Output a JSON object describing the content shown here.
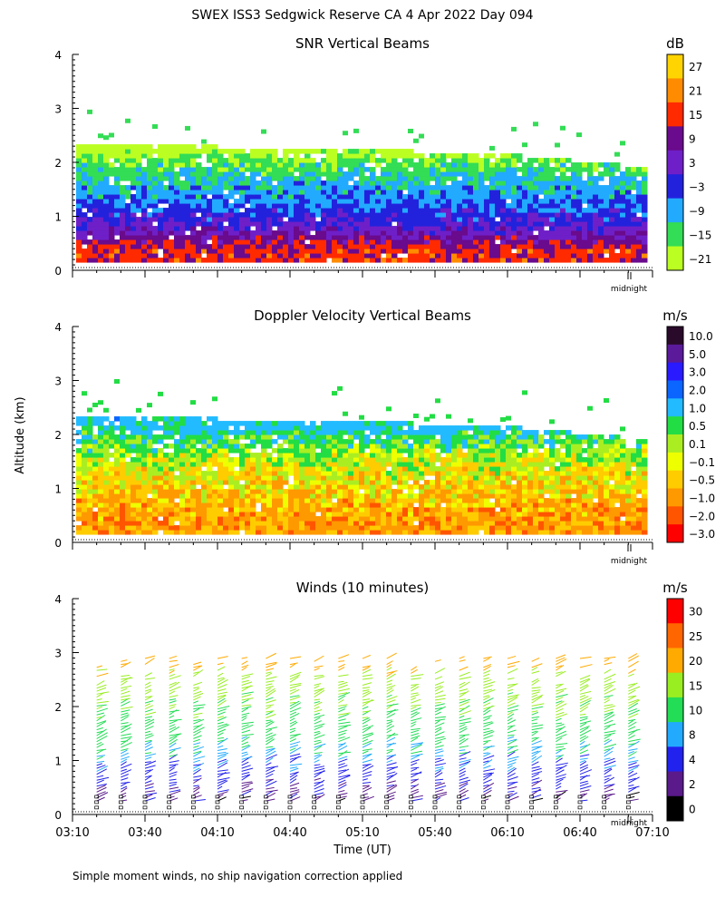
{
  "figure": {
    "title": "SWEX ISS3 Sedgwick Reserve CA    4 Apr 2022 Day 094",
    "ylabel": "Altitude (km)",
    "xlabel": "Time (UT)",
    "footnote": "Simple moment winds, no ship navigation correction applied",
    "midnight_label": "midnight"
  },
  "time_axis": {
    "ticks": [
      "03:10",
      "03:40",
      "04:10",
      "04:40",
      "05:10",
      "05:40",
      "06:10",
      "06:40",
      "07:10"
    ]
  },
  "chart_data": [
    {
      "type": "heatmap",
      "title": "SNR Vertical Beams",
      "xlabel": "",
      "ylabel": "Altitude (km)",
      "ylim": [
        0,
        4
      ],
      "xlim": [
        "03:10",
        "07:10"
      ],
      "yticks": [
        "0",
        "1",
        "2",
        "3",
        "4"
      ],
      "colorbar": {
        "unit": "dB",
        "labels": [
          "27",
          "21",
          "15",
          "9",
          "3",
          "−3",
          "−9",
          "−15",
          "−21"
        ],
        "colors": [
          "#ffd400",
          "#ff8c00",
          "#ff2a00",
          "#6a0a8c",
          "#6f1fc7",
          "#2222dd",
          "#22aaff",
          "#33dd55",
          "#bbff22"
        ]
      },
      "grid": false,
      "profile": [
        {
          "altitude": 0.35,
          "snr": 17
        },
        {
          "altitude": 0.55,
          "snr": 11
        },
        {
          "altitude": 0.8,
          "snr": 3
        },
        {
          "altitude": 1.2,
          "snr": -3
        },
        {
          "altitude": 1.6,
          "snr": -8
        },
        {
          "altitude": 2.0,
          "snr": -14
        },
        {
          "altitude": 2.2,
          "snr": -20
        }
      ],
      "data_top_km": [
        {
          "time": "03:10",
          "altitude": 2.25
        },
        {
          "time": "04:10",
          "altitude": 2.2
        },
        {
          "time": "05:10",
          "altitude": 2.15
        },
        {
          "time": "06:10",
          "altitude": 2.05
        },
        {
          "time": "07:10",
          "altitude": 1.8
        }
      ]
    },
    {
      "type": "heatmap",
      "title": "Doppler Velocity Vertical Beams",
      "xlabel": "",
      "ylabel": "Altitude (km)",
      "ylim": [
        0,
        4
      ],
      "xlim": [
        "03:10",
        "07:10"
      ],
      "yticks": [
        "0",
        "1",
        "2",
        "3",
        "4"
      ],
      "colorbar": {
        "unit": "m/s",
        "labels": [
          "10.0",
          "5.0",
          "3.0",
          "2.0",
          "1.0",
          "0.5",
          "0.1",
          "−0.1",
          "−0.5",
          "−1.0",
          "−2.0",
          "−3.0"
        ],
        "colors": [
          "#2a0a2a",
          "#5a1a9a",
          "#2a1aff",
          "#0a66ff",
          "#22bbff",
          "#22dd44",
          "#aaee22",
          "#eeff00",
          "#ffcc00",
          "#ff9900",
          "#ff5500",
          "#ff0000"
        ]
      },
      "grid": false,
      "profile": [
        {
          "altitude": 0.4,
          "velocity": -0.7
        },
        {
          "altitude": 0.9,
          "velocity": -0.3
        },
        {
          "altitude": 1.4,
          "velocity": 0.1
        },
        {
          "altitude": 1.9,
          "velocity": 0.8
        },
        {
          "altitude": 2.2,
          "velocity": 1.5
        }
      ]
    },
    {
      "type": "scatter",
      "title": "Winds (10 minutes)",
      "xlabel": "Time (UT)",
      "ylabel": "Altitude (km)",
      "ylim": [
        0,
        4
      ],
      "xlim": [
        "03:10",
        "07:10"
      ],
      "yticks": [
        "0",
        "1",
        "2",
        "3",
        "4"
      ],
      "colorbar": {
        "unit": "m/s",
        "labels": [
          "30",
          "25",
          "20",
          "15",
          "10",
          "8",
          "4",
          "2",
          "0"
        ],
        "colors": [
          "#ff0000",
          "#ff6600",
          "#ffaa00",
          "#99ee22",
          "#22dd55",
          "#22aaff",
          "#2222ee",
          "#5a1a8a",
          "#000000"
        ]
      },
      "grid": false,
      "profile_times": [
        "03:20",
        "03:30",
        "03:40",
        "03:50",
        "04:00",
        "04:10",
        "04:20",
        "04:30",
        "04:40",
        "04:50",
        "05:00",
        "05:10",
        "05:20",
        "05:30",
        "05:40",
        "05:50",
        "06:00",
        "06:10",
        "06:20",
        "06:30",
        "06:40",
        "06:50",
        "07:00"
      ],
      "speed_profile": [
        {
          "altitude": 0.4,
          "speed": 3
        },
        {
          "altitude": 0.8,
          "speed": 7
        },
        {
          "altitude": 1.2,
          "speed": 10
        },
        {
          "altitude": 1.8,
          "speed": 14
        },
        {
          "altitude": 2.4,
          "speed": 17
        },
        {
          "altitude": 2.8,
          "speed": 22
        }
      ]
    }
  ]
}
